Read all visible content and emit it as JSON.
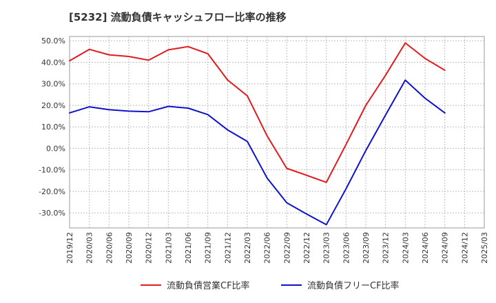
{
  "chart_data": {
    "type": "line",
    "title": "[5232]  流動負債キャッシュフロー比率の推移",
    "xlabel": "",
    "ylabel": "",
    "ylim": [
      -37,
      52
    ],
    "y_ticks": [
      50,
      40,
      30,
      20,
      10,
      0,
      -10,
      -20,
      -30
    ],
    "y_tick_labels": [
      "50.0%",
      "40.0%",
      "30.0%",
      "20.0%",
      "10.0%",
      "0.0%",
      "-10.0%",
      "-20.0%",
      "-30.0%"
    ],
    "x_tick_labels": [
      "2019/12",
      "2020/03",
      "2020/06",
      "2020/09",
      "2020/12",
      "2021/03",
      "2021/06",
      "2021/09",
      "2021/12",
      "2022/03",
      "2022/06",
      "2022/09",
      "2022/12",
      "2023/03",
      "2023/06",
      "2023/09",
      "2023/12",
      "2024/03",
      "2024/06",
      "2024/09",
      "2024/12",
      "2025/03"
    ],
    "grid": true,
    "legend_position": "bottom",
    "series": [
      {
        "name": "流動負債営業CF比率",
        "color": "#e31a1c",
        "x": [
          "2019/12",
          "2020/03",
          "2020/06",
          "2020/09",
          "2020/12",
          "2021/03",
          "2021/06",
          "2021/09",
          "2021/12",
          "2022/03",
          "2022/06",
          "2022/09",
          "2022/12",
          "2023/03",
          "2023/06",
          "2023/09",
          "2023/12",
          "2024/03",
          "2024/06",
          "2024/09"
        ],
        "values": [
          40.7,
          46.0,
          43.5,
          42.7,
          41.0,
          45.8,
          47.3,
          44.0,
          31.8,
          24.4,
          5.8,
          -9.3,
          -12.5,
          -15.8,
          1.8,
          20.0,
          34.0,
          49.0,
          41.8,
          36.3
        ]
      },
      {
        "name": "流動負債フリーCF比率",
        "color": "#1010cc",
        "x": [
          "2019/12",
          "2020/03",
          "2020/06",
          "2020/09",
          "2020/12",
          "2021/03",
          "2021/06",
          "2021/09",
          "2021/12",
          "2022/03",
          "2022/06",
          "2022/09",
          "2022/12",
          "2023/03",
          "2023/06",
          "2023/09",
          "2023/12",
          "2024/03",
          "2024/06",
          "2024/09"
        ],
        "values": [
          16.5,
          19.3,
          18.0,
          17.3,
          17.0,
          19.5,
          18.7,
          15.7,
          8.6,
          3.2,
          -13.8,
          -25.3,
          -30.5,
          -35.5,
          -18.8,
          -1.0,
          15.5,
          31.7,
          23.3,
          16.5
        ]
      }
    ]
  }
}
